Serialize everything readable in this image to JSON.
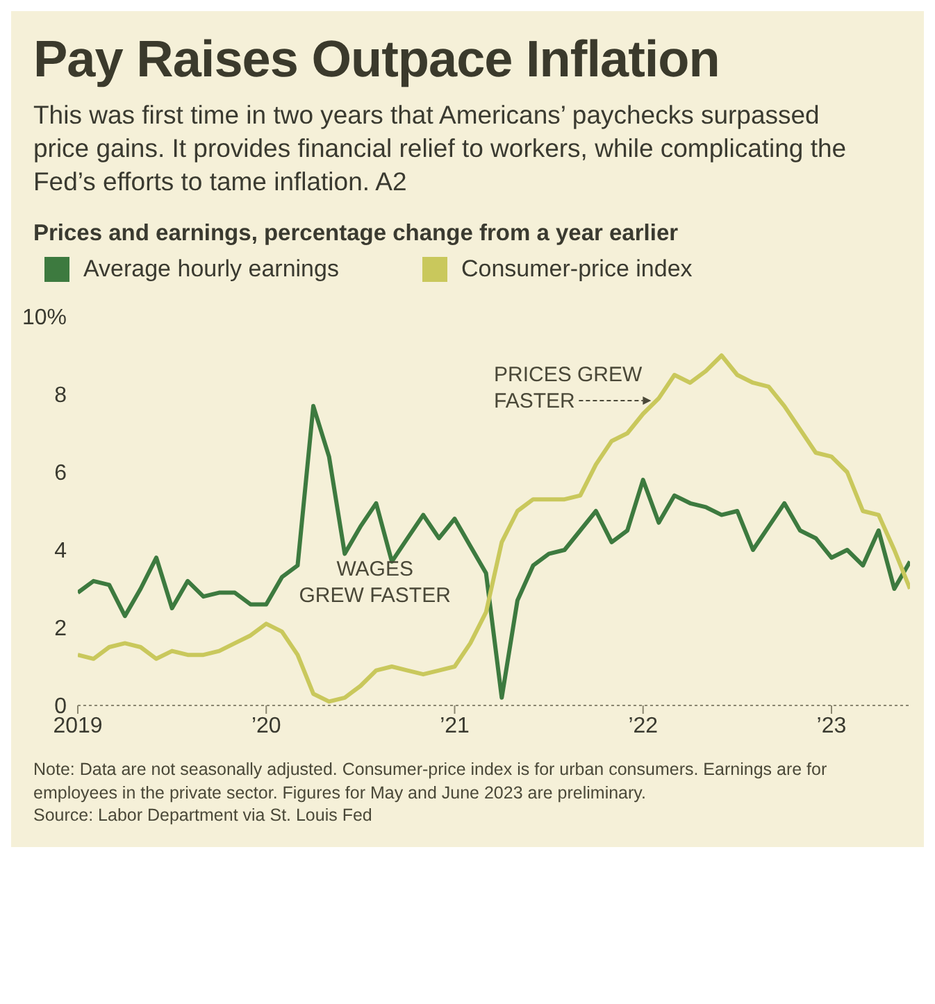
{
  "chart_data": {
    "type": "line",
    "title": "Pay Raises Outpace Inflation",
    "subtitle": "This was first time in two years that Americans’ paychecks surpassed price gains. It provides financial relief to workers, while complicating the Fed’s efforts to tame inflation. A2",
    "ylabel": "Prices and earnings, percentage change from a year earlier",
    "x": [
      "2019-01",
      "2019-02",
      "2019-03",
      "2019-04",
      "2019-05",
      "2019-06",
      "2019-07",
      "2019-08",
      "2019-09",
      "2019-10",
      "2019-11",
      "2019-12",
      "2020-01",
      "2020-02",
      "2020-03",
      "2020-04",
      "2020-05",
      "2020-06",
      "2020-07",
      "2020-08",
      "2020-09",
      "2020-10",
      "2020-11",
      "2020-12",
      "2021-01",
      "2021-02",
      "2021-03",
      "2021-04",
      "2021-05",
      "2021-06",
      "2021-07",
      "2021-08",
      "2021-09",
      "2021-10",
      "2021-11",
      "2021-12",
      "2022-01",
      "2022-02",
      "2022-03",
      "2022-04",
      "2022-05",
      "2022-06",
      "2022-07",
      "2022-08",
      "2022-09",
      "2022-10",
      "2022-11",
      "2022-12",
      "2023-01",
      "2023-02",
      "2023-03",
      "2023-04",
      "2023-05",
      "2023-06"
    ],
    "series": [
      {
        "name": "Average hourly earnings",
        "color": "#3d7a3f",
        "values": [
          2.9,
          3.2,
          3.1,
          2.3,
          3.0,
          3.8,
          2.5,
          3.2,
          2.8,
          2.9,
          2.9,
          2.6,
          2.6,
          3.3,
          3.6,
          7.7,
          6.4,
          3.9,
          4.6,
          5.2,
          3.7,
          4.3,
          4.9,
          4.3,
          4.8,
          4.1,
          3.4,
          0.2,
          2.7,
          3.6,
          3.9,
          4.0,
          4.5,
          5.0,
          4.2,
          4.5,
          5.8,
          4.7,
          5.4,
          5.2,
          5.1,
          4.9,
          5.0,
          4.0,
          4.6,
          5.2,
          4.5,
          4.3,
          3.8,
          4.0,
          3.6,
          4.5,
          3.0,
          3.7
        ]
      },
      {
        "name": "Consumer-price index",
        "color": "#c9c85c",
        "values": [
          1.3,
          1.2,
          1.5,
          1.6,
          1.5,
          1.2,
          1.4,
          1.3,
          1.3,
          1.4,
          1.6,
          1.8,
          2.1,
          1.9,
          1.3,
          0.3,
          0.1,
          0.2,
          0.5,
          0.9,
          1.0,
          0.9,
          0.8,
          0.9,
          1.0,
          1.6,
          2.4,
          4.2,
          5.0,
          5.3,
          5.3,
          5.3,
          5.4,
          6.2,
          6.8,
          7.0,
          7.5,
          7.9,
          8.5,
          8.3,
          8.6,
          9.0,
          8.5,
          8.3,
          8.2,
          7.7,
          7.1,
          6.5,
          6.4,
          6.0,
          5.0,
          4.9,
          4.0,
          3.0
        ]
      }
    ],
    "xlim": [
      "2019-01",
      "2023-06"
    ],
    "xticks": [
      {
        "value": "2019-01",
        "label": "2019"
      },
      {
        "value": "2020-01",
        "label": "’20"
      },
      {
        "value": "2021-01",
        "label": "’21"
      },
      {
        "value": "2022-01",
        "label": "’22"
      },
      {
        "value": "2023-01",
        "label": "’23"
      }
    ],
    "ylim": [
      0,
      10
    ],
    "yticks": [
      0,
      2,
      4,
      6,
      8,
      {
        "value": 10,
        "label": "10%"
      }
    ],
    "legend": "top left",
    "annotations": [
      "WAGES\nGREW FASTER",
      "PRICES GREW\nFASTER",
      "Note: Data are not seasonally adjusted. Consumer-price index is for urban consumers. Earnings are for employees in the private sector. Figures for May and June 2023 are preliminary.",
      "Source: Labor Department via St. Louis Fed"
    ]
  }
}
